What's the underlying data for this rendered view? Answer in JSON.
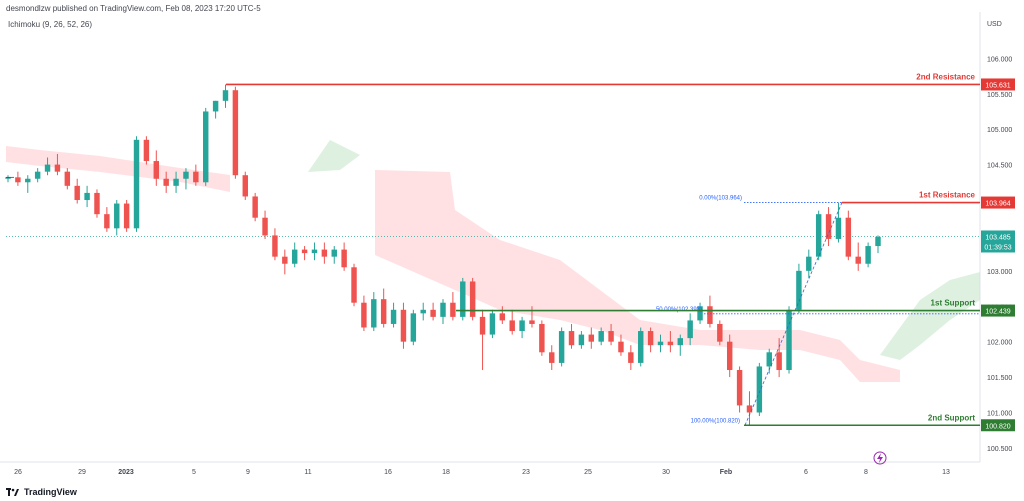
{
  "header": {
    "publisher_line": "desmondlzw published on TradingView.com, Feb 08, 2023 17:20 UTC-5",
    "indicator": "Ichimoku (9, 26, 52, 26)"
  },
  "footer": {
    "brand": "TradingView"
  },
  "colors": {
    "bull": "#26a69a",
    "bear": "#ef5350",
    "resistance": "#e53935",
    "support": "#2e7d32",
    "cloud_bear": "#ffcdd2",
    "cloud_bull": "#c8e6c9",
    "fib": "#2962ff",
    "last_price": "#26a69a"
  },
  "chart_data": {
    "type": "candlestick",
    "currency": "USD",
    "ylim": [
      100.4,
      106.4
    ],
    "y_ticks": [
      "106.000",
      "105.500",
      "105.000",
      "104.500",
      "104.000",
      "103.500",
      "103.000",
      "102.500",
      "102.000",
      "101.500",
      "101.000",
      "100.500"
    ],
    "x_ticks": [
      "26",
      "29",
      "2023",
      "5",
      "9",
      "11",
      "16",
      "18",
      "23",
      "25",
      "30",
      "Feb",
      "6",
      "8",
      "13"
    ],
    "levels": [
      {
        "label": "2nd Resistance",
        "value": 105.631,
        "price_label": "105.631",
        "kind": "resistance"
      },
      {
        "label": "1st Resistance",
        "value": 103.964,
        "price_label": "103.964",
        "kind": "resistance"
      },
      {
        "label": "1st Support",
        "value": 102.439,
        "price_label": "102.439",
        "kind": "support"
      },
      {
        "label": "2nd Support",
        "value": 100.82,
        "price_label": "100.820",
        "kind": "support"
      }
    ],
    "fib_labels": [
      {
        "text": "0.00%(103.964)",
        "value": 103.964
      },
      {
        "text": "50.00%(102.393)",
        "value": 102.393
      },
      {
        "text": "100.00%(100.820)",
        "value": 100.82
      }
    ],
    "last_price": {
      "value": 103.485,
      "price_label": "103.485",
      "countdown": "01:39:53"
    },
    "candles": [
      [
        104.3,
        104.35,
        104.25,
        104.32
      ],
      [
        104.32,
        104.4,
        104.2,
        104.25
      ],
      [
        104.25,
        104.35,
        104.1,
        104.3
      ],
      [
        104.3,
        104.45,
        104.25,
        104.4
      ],
      [
        104.4,
        104.6,
        104.35,
        104.5
      ],
      [
        104.5,
        104.65,
        104.35,
        104.4
      ],
      [
        104.4,
        104.45,
        104.15,
        104.2
      ],
      [
        104.2,
        104.3,
        103.95,
        104.0
      ],
      [
        104.0,
        104.2,
        103.9,
        104.1
      ],
      [
        104.1,
        104.15,
        103.75,
        103.8
      ],
      [
        103.8,
        103.9,
        103.55,
        103.6
      ],
      [
        103.6,
        104.0,
        103.5,
        103.95
      ],
      [
        103.95,
        104.0,
        103.55,
        103.6
      ],
      [
        103.6,
        104.9,
        103.55,
        104.85
      ],
      [
        104.85,
        104.9,
        104.5,
        104.55
      ],
      [
        104.55,
        104.7,
        104.2,
        104.3
      ],
      [
        104.3,
        104.4,
        104.1,
        104.2
      ],
      [
        104.2,
        104.4,
        104.1,
        104.3
      ],
      [
        104.3,
        104.45,
        104.15,
        104.4
      ],
      [
        104.4,
        104.5,
        104.2,
        104.25
      ],
      [
        104.25,
        105.3,
        104.2,
        105.25
      ],
      [
        105.25,
        105.4,
        105.15,
        105.4
      ],
      [
        105.4,
        105.63,
        105.3,
        105.55
      ],
      [
        105.55,
        105.6,
        104.3,
        104.35
      ],
      [
        104.35,
        104.4,
        104.0,
        104.05
      ],
      [
        104.05,
        104.1,
        103.7,
        103.75
      ],
      [
        103.75,
        103.85,
        103.45,
        103.5
      ],
      [
        103.5,
        103.6,
        103.15,
        103.2
      ],
      [
        103.2,
        103.3,
        102.95,
        103.1
      ],
      [
        103.1,
        103.4,
        103.05,
        103.3
      ],
      [
        103.3,
        103.35,
        103.15,
        103.25
      ],
      [
        103.25,
        103.4,
        103.15,
        103.3
      ],
      [
        103.3,
        103.4,
        103.1,
        103.2
      ],
      [
        103.2,
        103.35,
        103.1,
        103.3
      ],
      [
        103.3,
        103.4,
        103.0,
        103.05
      ],
      [
        103.05,
        103.1,
        102.5,
        102.55
      ],
      [
        102.55,
        102.65,
        102.15,
        102.2
      ],
      [
        102.2,
        102.7,
        102.15,
        102.6
      ],
      [
        102.6,
        102.75,
        102.2,
        102.25
      ],
      [
        102.25,
        102.55,
        102.2,
        102.45
      ],
      [
        102.45,
        102.55,
        101.9,
        102.0
      ],
      [
        102.0,
        102.45,
        101.95,
        102.4
      ],
      [
        102.4,
        102.55,
        102.3,
        102.45
      ],
      [
        102.45,
        102.55,
        102.3,
        102.35
      ],
      [
        102.35,
        102.6,
        102.25,
        102.55
      ],
      [
        102.55,
        102.7,
        102.3,
        102.35
      ],
      [
        102.35,
        102.9,
        102.3,
        102.85
      ],
      [
        102.85,
        102.9,
        102.3,
        102.35
      ],
      [
        102.35,
        102.45,
        101.6,
        102.1
      ],
      [
        102.1,
        102.45,
        102.05,
        102.4
      ],
      [
        102.4,
        102.5,
        102.25,
        102.3
      ],
      [
        102.3,
        102.45,
        102.1,
        102.15
      ],
      [
        102.15,
        102.35,
        102.05,
        102.3
      ],
      [
        102.3,
        102.5,
        102.2,
        102.25
      ],
      [
        102.25,
        102.3,
        101.8,
        101.85
      ],
      [
        101.85,
        101.95,
        101.6,
        101.7
      ],
      [
        101.7,
        102.2,
        101.65,
        102.15
      ],
      [
        102.15,
        102.25,
        101.9,
        101.95
      ],
      [
        101.95,
        102.15,
        101.9,
        102.1
      ],
      [
        102.1,
        102.2,
        101.9,
        102.0
      ],
      [
        102.0,
        102.2,
        101.95,
        102.15
      ],
      [
        102.15,
        102.25,
        101.95,
        102.0
      ],
      [
        102.0,
        102.1,
        101.8,
        101.85
      ],
      [
        101.85,
        101.95,
        101.6,
        101.7
      ],
      [
        101.7,
        102.2,
        101.65,
        102.15
      ],
      [
        102.15,
        102.2,
        101.85,
        101.95
      ],
      [
        101.95,
        102.1,
        101.85,
        102.0
      ],
      [
        102.0,
        102.15,
        101.85,
        101.95
      ],
      [
        101.95,
        102.1,
        101.8,
        102.05
      ],
      [
        102.05,
        102.4,
        101.95,
        102.3
      ],
      [
        102.3,
        102.55,
        102.25,
        102.5
      ],
      [
        102.5,
        102.65,
        102.2,
        102.25
      ],
      [
        102.25,
        102.3,
        101.95,
        102.0
      ],
      [
        102.0,
        102.1,
        101.5,
        101.6
      ],
      [
        101.6,
        101.65,
        101.0,
        101.1
      ],
      [
        101.1,
        101.3,
        100.82,
        101.0
      ],
      [
        101.0,
        101.7,
        100.95,
        101.65
      ],
      [
        101.65,
        101.9,
        101.55,
        101.85
      ],
      [
        101.85,
        102.05,
        101.5,
        101.6
      ],
      [
        101.6,
        102.5,
        101.55,
        102.45
      ],
      [
        102.45,
        103.1,
        102.4,
        103.0
      ],
      [
        103.0,
        103.3,
        102.9,
        103.2
      ],
      [
        103.2,
        103.85,
        103.15,
        103.8
      ],
      [
        103.8,
        103.9,
        103.35,
        103.45
      ],
      [
        103.45,
        103.96,
        103.4,
        103.75
      ],
      [
        103.75,
        103.85,
        103.15,
        103.2
      ],
      [
        103.2,
        103.4,
        103.0,
        103.1
      ],
      [
        103.1,
        103.4,
        103.05,
        103.35
      ],
      [
        103.35,
        103.5,
        103.25,
        103.48
      ]
    ]
  }
}
